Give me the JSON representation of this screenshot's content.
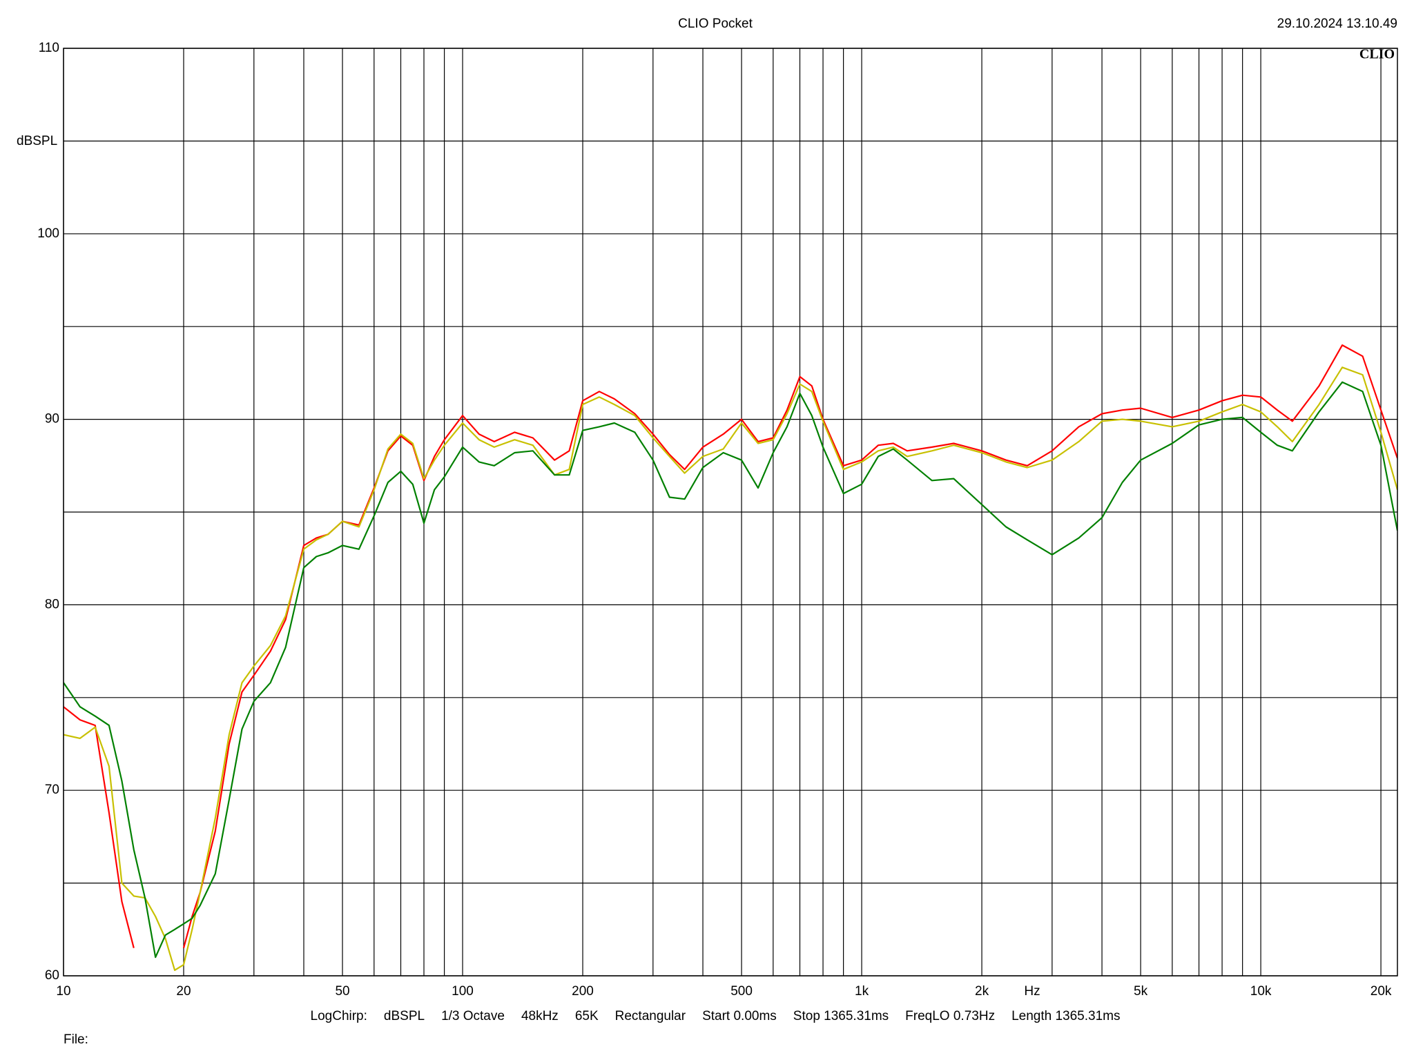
{
  "chart_data": {
    "type": "line",
    "title": "CLIO Pocket",
    "timestamp": "29.10.2024 13.10.49",
    "logo": "CLIO",
    "y_label": "dBSPL",
    "x_unit_label": "Hz",
    "footer_items": [
      "LogChirp:",
      "dBSPL",
      "1/3 Octave",
      "48kHz",
      "65K",
      "Rectangular",
      "Start 0.00ms",
      "Stop 1365.31ms",
      "FreqLO 0.73Hz",
      "Length 1365.31ms"
    ],
    "file_label": "File:",
    "x_log": true,
    "grid": true,
    "xlim": [
      10,
      22000
    ],
    "ylim": [
      60,
      110
    ],
    "xticks": [
      10,
      20,
      50,
      100,
      200,
      500,
      {
        "value": 1000,
        "label": "1k"
      },
      {
        "value": 2000,
        "label": "2k"
      },
      {
        "value": 5000,
        "label": "5k"
      },
      {
        "value": 10000,
        "label": "10k"
      },
      {
        "value": 20000,
        "label": "20k"
      }
    ],
    "x_minor_grid": [
      30,
      40,
      60,
      70,
      80,
      90,
      300,
      400,
      600,
      700,
      800,
      900,
      3000,
      4000,
      6000,
      7000,
      8000,
      9000
    ],
    "yticks": [
      60,
      70,
      80,
      90,
      100,
      110
    ],
    "y_minor_grid": [
      65,
      75,
      85,
      95,
      105
    ],
    "x": [
      10,
      11,
      12,
      13,
      14,
      15,
      16,
      17,
      18,
      19,
      20,
      21,
      22,
      24,
      26,
      28,
      30,
      33,
      36,
      40,
      43,
      46,
      50,
      55,
      60,
      65,
      70,
      75,
      80,
      85,
      90,
      100,
      110,
      120,
      135,
      150,
      170,
      185,
      200,
      220,
      240,
      270,
      300,
      330,
      360,
      400,
      450,
      500,
      550,
      600,
      650,
      700,
      750,
      800,
      900,
      1000,
      1100,
      1200,
      1300,
      1500,
      1700,
      2000,
      2300,
      2600,
      3000,
      3500,
      4000,
      4500,
      5000,
      6000,
      7000,
      8000,
      9000,
      10000,
      11000,
      12000,
      14000,
      16000,
      18000,
      20000,
      22000
    ],
    "series": [
      {
        "color": "#ff0000",
        "values": [
          74.5,
          73.8,
          73.5,
          68.8,
          64,
          61.5,
          null,
          null,
          null,
          null,
          61.5,
          63.2,
          64.5,
          67.8,
          72.5,
          75.3,
          76.2,
          77.5,
          79.2,
          83.2,
          83.6,
          83.8,
          84.5,
          84.3,
          86.3,
          88.3,
          89.1,
          88.6,
          86.7,
          88.0,
          88.9,
          90.2,
          89.2,
          88.8,
          89.3,
          89.0,
          87.8,
          88.3,
          91.0,
          91.5,
          91.1,
          90.3,
          89.2,
          88.1,
          87.3,
          88.5,
          89.2,
          90.0,
          88.8,
          89.0,
          90.5,
          92.3,
          91.8,
          90.0,
          87.5,
          87.8,
          88.6,
          88.7,
          88.3,
          88.5,
          88.7,
          88.3,
          87.8,
          87.5,
          88.3,
          89.6,
          90.3,
          90.5,
          90.6,
          90.1,
          90.5,
          91.0,
          91.3,
          91.2,
          90.5,
          89.9,
          91.8,
          94.0,
          93.4,
          90.5,
          87.9
        ]
      },
      {
        "color": "#c8c000",
        "values": [
          73.0,
          72.8,
          73.4,
          71.3,
          65.0,
          64.3,
          64.2,
          63.2,
          62.0,
          60.3,
          60.6,
          62.5,
          64.5,
          68.5,
          73.0,
          75.8,
          76.7,
          77.8,
          79.4,
          83.0,
          83.5,
          83.8,
          84.5,
          84.2,
          86.2,
          88.4,
          89.2,
          88.7,
          86.8,
          87.8,
          88.6,
          89.8,
          88.9,
          88.5,
          88.9,
          88.6,
          87.0,
          87.3,
          90.8,
          91.2,
          90.8,
          90.2,
          89.0,
          88.0,
          87.1,
          88.0,
          88.4,
          89.8,
          88.7,
          88.9,
          90.3,
          91.9,
          91.5,
          89.9,
          87.3,
          87.7,
          88.3,
          88.5,
          88.0,
          88.3,
          88.6,
          88.2,
          87.7,
          87.4,
          87.8,
          88.8,
          89.9,
          90.0,
          89.9,
          89.6,
          89.9,
          90.4,
          90.8,
          90.4,
          89.6,
          88.8,
          90.8,
          92.8,
          92.4,
          89.3,
          86.2
        ]
      },
      {
        "color": "#008000",
        "values": [
          75.8,
          74.5,
          74.0,
          73.5,
          70.5,
          66.8,
          64.2,
          61.0,
          62.2,
          62.5,
          62.8,
          63.1,
          63.8,
          65.5,
          69.5,
          73.3,
          74.8,
          75.8,
          77.7,
          82.0,
          82.6,
          82.8,
          83.2,
          83.0,
          84.8,
          86.6,
          87.2,
          86.5,
          84.4,
          86.2,
          86.9,
          88.5,
          87.7,
          87.5,
          88.2,
          88.3,
          87.0,
          87.0,
          89.4,
          89.6,
          89.8,
          89.3,
          87.8,
          85.8,
          85.7,
          87.4,
          88.2,
          87.8,
          86.3,
          88.2,
          89.6,
          91.4,
          90.2,
          88.5,
          86.0,
          86.5,
          88.0,
          88.4,
          87.8,
          86.7,
          86.8,
          85.4,
          84.2,
          83.5,
          82.7,
          83.6,
          84.7,
          86.6,
          87.8,
          88.7,
          89.7,
          90.0,
          90.1,
          89.3,
          88.6,
          88.3,
          90.4,
          92.0,
          91.5,
          88.6,
          84.0
        ]
      }
    ]
  }
}
